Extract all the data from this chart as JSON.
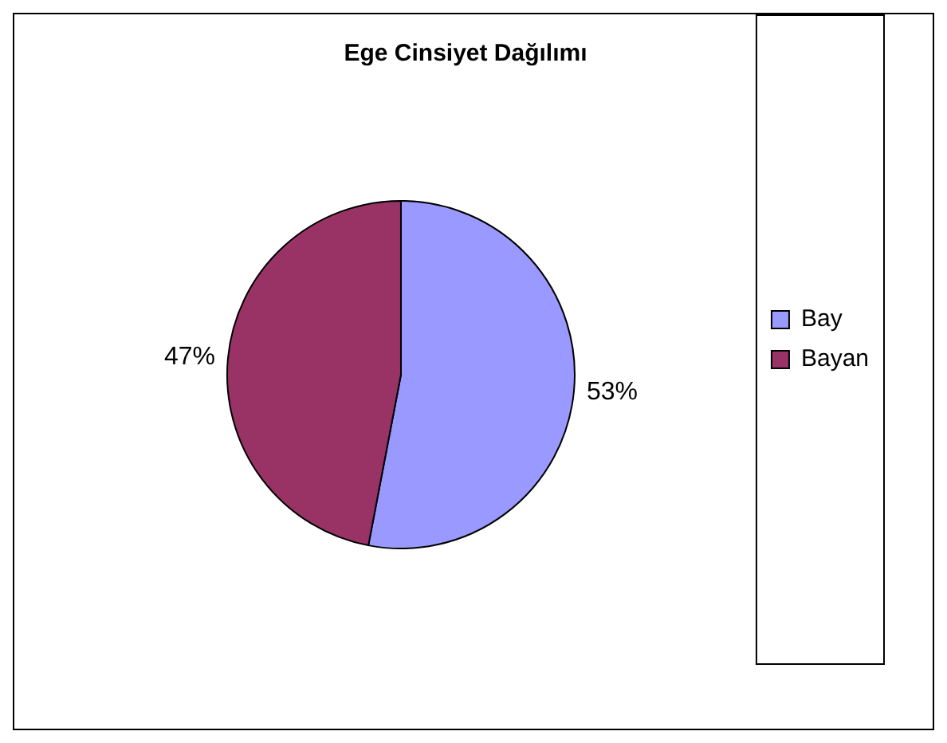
{
  "chart_data": {
    "type": "pie",
    "title": "Ege Cinsiyet Dağılımı",
    "categories": [
      "Bay",
      "Bayan"
    ],
    "values": [
      53,
      47
    ],
    "colors": [
      "#9999ff",
      "#993366"
    ],
    "value_labels": [
      "53%",
      "47%"
    ],
    "legend": "right"
  }
}
